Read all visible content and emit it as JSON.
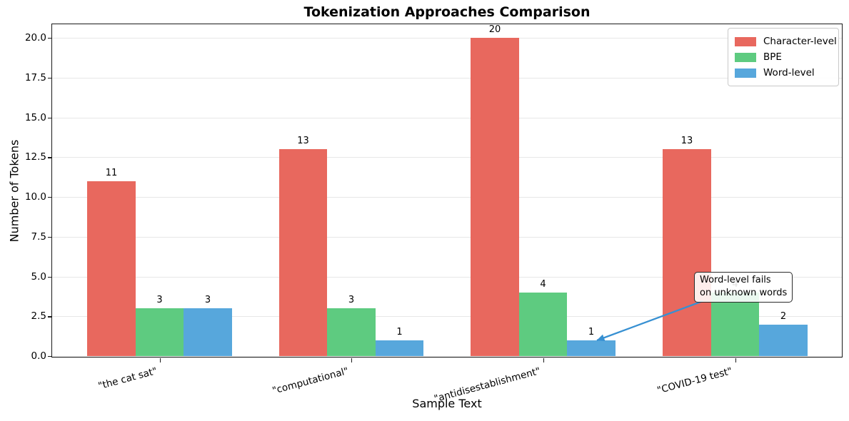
{
  "figure": {
    "title": "Tokenization Approaches Comparison",
    "xlabel": "Sample Text",
    "ylabel": "Number of Tokens"
  },
  "chart_data": {
    "type": "bar",
    "title": "Tokenization Approaches Comparison",
    "xlabel": "Sample Text",
    "ylabel": "Number of Tokens",
    "categories": [
      "\"the cat sat\"",
      "\"computational\"",
      "\"antidisestablishment\"",
      "\"COVID-19 test\""
    ],
    "series": [
      {
        "name": "Character-level",
        "color": "#e8685e",
        "values": [
          11,
          13,
          20,
          13
        ]
      },
      {
        "name": "BPE",
        "color": "#5ecb80",
        "values": [
          3,
          3,
          4,
          4
        ]
      },
      {
        "name": "Word-level",
        "color": "#57a7dc",
        "values": [
          3,
          1,
          1,
          2
        ]
      }
    ],
    "bar_labels_shown": true,
    "ylim": [
      0,
      21
    ],
    "yticks": [
      0,
      2.5,
      5,
      7.5,
      10,
      12.5,
      15,
      17.5,
      20
    ],
    "ytick_labels": [
      "0.0",
      "2.5",
      "5.0",
      "7.5",
      "10.0",
      "12.5",
      "15.0",
      "17.5",
      "20.0"
    ],
    "grid": "horizontal",
    "grid_color": "#e7e7e7",
    "legend_position": "upper right",
    "xtick_rotation_deg": 15,
    "annotation": {
      "lines": [
        "Word-level fails",
        "on unknown words"
      ],
      "target_category": "\"antidisestablishment\"",
      "target_series": "Word-level",
      "target_value": 1,
      "arrow_color": "#3790d2"
    }
  }
}
